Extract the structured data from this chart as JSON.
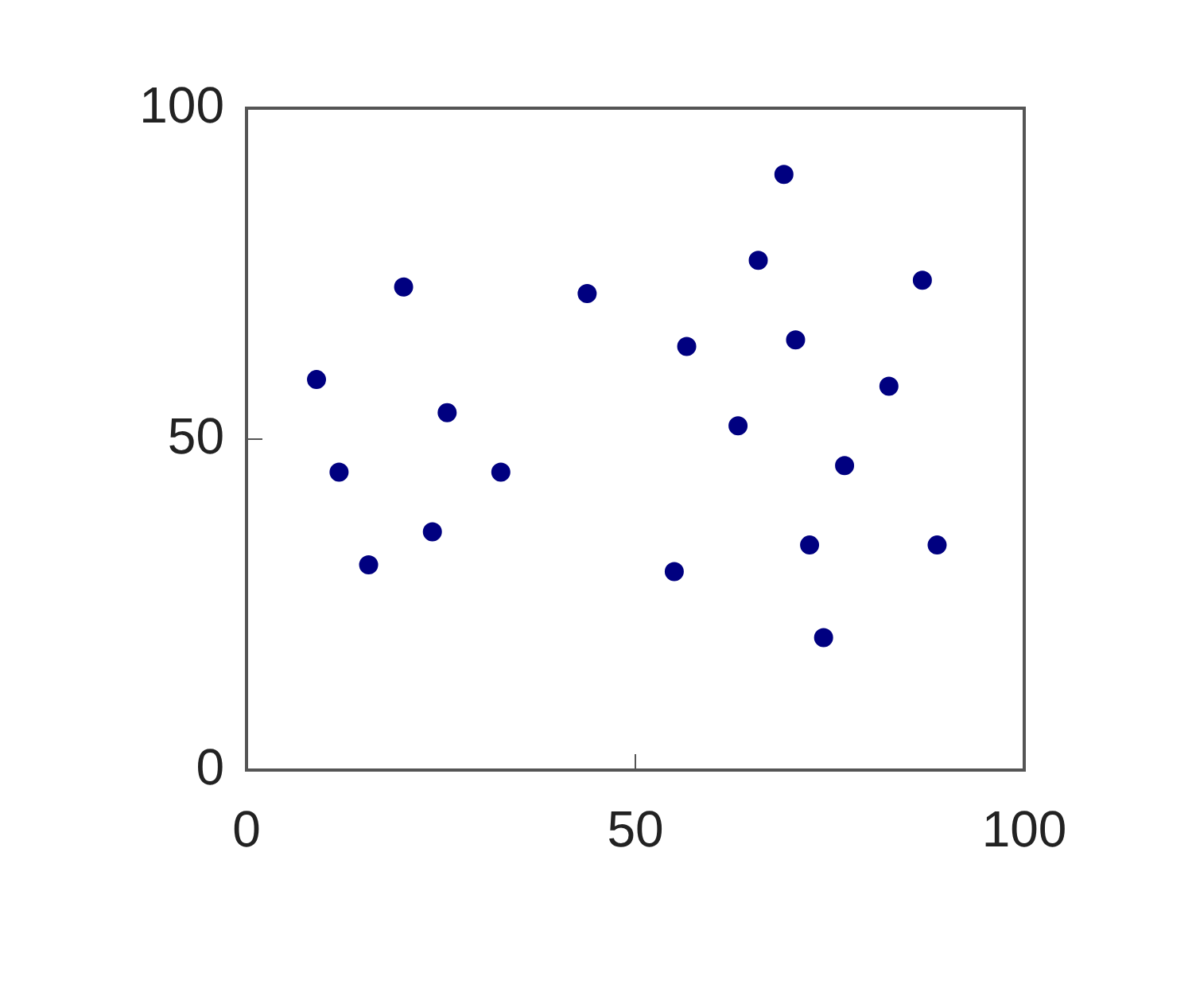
{
  "chart_data": {
    "type": "scatter",
    "x": [
      9.0,
      11.9,
      15.7,
      20.2,
      23.9,
      25.8,
      32.7,
      43.8,
      55.0,
      56.6,
      63.2,
      65.8,
      69.1,
      70.6,
      72.4,
      74.2,
      76.9,
      82.6,
      86.9,
      88.8
    ],
    "values": [
      59,
      45,
      31,
      73,
      36,
      54,
      45,
      72,
      30,
      64,
      52,
      77,
      90,
      65,
      34,
      20,
      46,
      58,
      74,
      34
    ],
    "color": "#000080",
    "xlim": [
      0,
      100
    ],
    "xticks": [
      0,
      50,
      100
    ],
    "ylim": [
      0,
      100
    ],
    "yticks": [
      0,
      50,
      100
    ],
    "grid": false,
    "legend": false,
    "marker": "circle"
  }
}
